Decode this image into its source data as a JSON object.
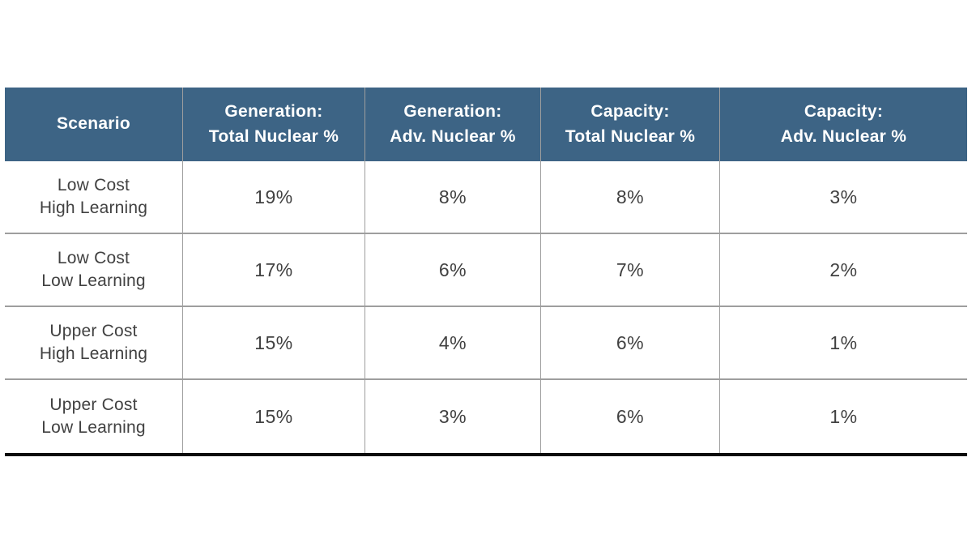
{
  "table": {
    "headers": [
      "Scenario",
      "Generation:\nTotal Nuclear %",
      "Generation:\nAdv. Nuclear %",
      "Capacity:\nTotal Nuclear %",
      "Capacity:\nAdv. Nuclear %"
    ],
    "rows": [
      {
        "scenario": "Low Cost\nHigh Learning",
        "values": [
          "19%",
          "8%",
          "8%",
          "3%"
        ]
      },
      {
        "scenario": "Low Cost\nLow Learning",
        "values": [
          "17%",
          "6%",
          "7%",
          "2%"
        ]
      },
      {
        "scenario": "Upper Cost\nHigh Learning",
        "values": [
          "15%",
          "4%",
          "6%",
          "1%"
        ]
      },
      {
        "scenario": "Upper Cost\nLow Learning",
        "values": [
          "15%",
          "3%",
          "6%",
          "1%"
        ]
      }
    ]
  },
  "colors": {
    "header_bg": "#3d6485",
    "header_text": "#ffffff",
    "body_text": "#414141",
    "grid_line": "#9e9e9e",
    "bottom_rule": "#0a0a0a"
  },
  "chart_data": {
    "type": "table",
    "title": "",
    "columns": [
      "Scenario",
      "Generation: Total Nuclear %",
      "Generation: Adv. Nuclear %",
      "Capacity: Total Nuclear %",
      "Capacity: Adv. Nuclear %"
    ],
    "rows": [
      [
        "Low Cost High Learning",
        19,
        8,
        8,
        3
      ],
      [
        "Low Cost Low Learning",
        17,
        6,
        7,
        2
      ],
      [
        "Upper Cost High Learning",
        15,
        4,
        6,
        1
      ],
      [
        "Upper Cost Low Learning",
        15,
        3,
        6,
        1
      ]
    ],
    "units": "%"
  }
}
